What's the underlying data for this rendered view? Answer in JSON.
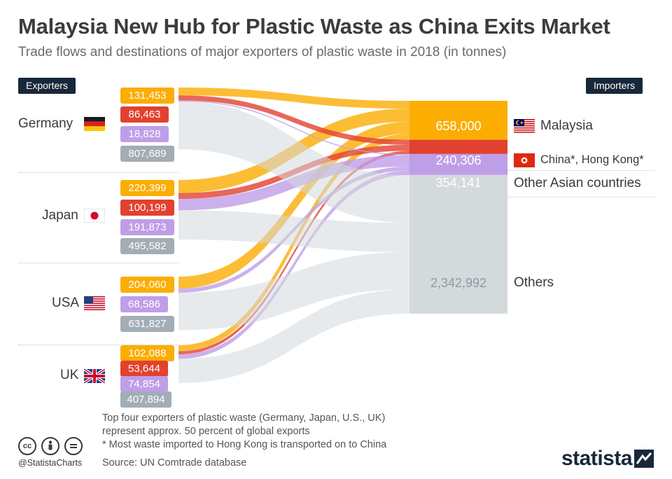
{
  "title": "Malaysia New Hub for Plastic Waste as China Exits Market",
  "subtitle": "Trade flows and destinations of major exporters of plastic waste in 2018 (in tonnes)",
  "exporters_tag": "Exporters",
  "importers_tag": "Importers",
  "colors": {
    "Malaysia": "#fbad02",
    "China, Hong Kong": "#e2412f",
    "Other Asian countries": "#bf9ee8",
    "Others": "#d4d9dc",
    "Others_label": "#a2adb6",
    "dark": "#18283a"
  },
  "chart_data": {
    "type": "sankey",
    "title": "Malaysia New Hub for Plastic Waste as China Exits Market",
    "subtitle": "Trade flows and destinations of major exporters of plastic waste in 2018 (in tonnes)",
    "exporters": [
      {
        "name": "Germany",
        "flag": "germany-flag",
        "flows": {
          "Malaysia": "131,453",
          "China, Hong Kong": "86,463",
          "Other Asian countries": "18,828",
          "Others": "807,689"
        }
      },
      {
        "name": "Japan",
        "flag": "japan-flag",
        "flows": {
          "Malaysia": "220,399",
          "China, Hong Kong": "100,199",
          "Other Asian countries": "191,873",
          "Others": "495,582"
        }
      },
      {
        "name": "USA",
        "flag": "usa-flag",
        "flows": {
          "Malaysia": "204,060",
          "Other Asian countries": "68,586",
          "Others": "631,827"
        }
      },
      {
        "name": "UK",
        "flag": "uk-flag",
        "flows": {
          "Malaysia": "102,088",
          "China, Hong Kong": "53,644",
          "Other Asian countries": "74,854",
          "Others": "407,894"
        }
      }
    ],
    "importers": [
      {
        "key": "Malaysia",
        "label": "Malaysia",
        "total": "658,000",
        "flag": "malaysia-flag"
      },
      {
        "key": "China, Hong Kong",
        "label": "China*, Hong Kong*",
        "total": "240,306",
        "flag": "hong-kong-flag"
      },
      {
        "key": "Other Asian countries",
        "label": "Other Asian countries",
        "total": "354,141"
      },
      {
        "key": "Others",
        "label": "Others",
        "total": "2,342,992"
      }
    ]
  },
  "notes": {
    "line1": "Top four exporters of plastic waste (Germany, Japan, U.S., UK)",
    "line2": "represent approx. 50 percent of global exports",
    "line3": "* Most waste imported to Hong Kong is transported on to China",
    "source": "Source: UN Comtrade database"
  },
  "footer": {
    "handle": "@StatistaCharts",
    "brand": "statista",
    "license_icons": [
      "cc-icon",
      "by-icon",
      "nd-icon"
    ]
  }
}
